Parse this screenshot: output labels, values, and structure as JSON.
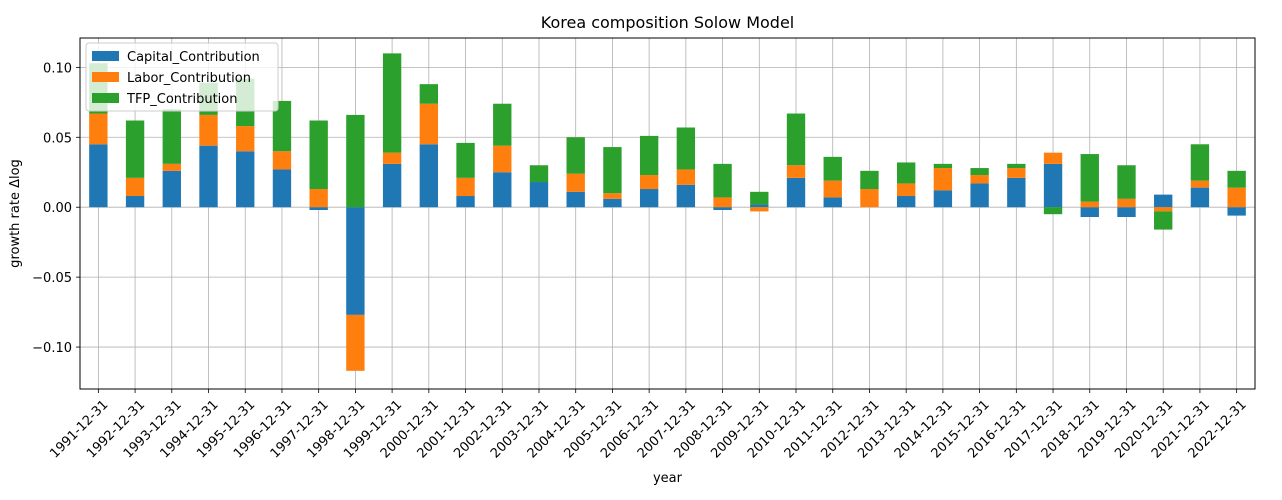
{
  "chart_data": {
    "type": "bar",
    "stacked": true,
    "title": "Korea composition Solow Model",
    "xlabel": "year",
    "ylabel": "growth rate Δlog",
    "ylim": [
      -0.13,
      0.121
    ],
    "yticks": [
      -0.1,
      -0.05,
      0.0,
      0.05,
      0.1
    ],
    "ytick_labels": [
      "−0.10",
      "−0.05",
      "0.00",
      "0.05",
      "0.10"
    ],
    "grid": true,
    "legend_position": "top-left",
    "categories": [
      "1991-12-31",
      "1992-12-31",
      "1993-12-31",
      "1994-12-31",
      "1995-12-31",
      "1996-12-31",
      "1997-12-31",
      "1998-12-31",
      "1999-12-31",
      "2000-12-31",
      "2001-12-31",
      "2002-12-31",
      "2003-12-31",
      "2004-12-31",
      "2005-12-31",
      "2006-12-31",
      "2007-12-31",
      "2008-12-31",
      "2009-12-31",
      "2010-12-31",
      "2011-12-31",
      "2012-12-31",
      "2013-12-31",
      "2014-12-31",
      "2015-12-31",
      "2016-12-31",
      "2017-12-31",
      "2018-12-31",
      "2019-12-31",
      "2020-12-31",
      "2021-12-31",
      "2022-12-31"
    ],
    "series": [
      {
        "name": "Capital_Contribution",
        "color": "#1f77b4",
        "values": [
          0.045,
          0.008,
          0.026,
          0.044,
          0.04,
          0.027,
          -0.002,
          -0.077,
          0.031,
          0.045,
          0.008,
          0.025,
          0.018,
          0.011,
          0.006,
          0.013,
          0.016,
          -0.002,
          0.002,
          0.021,
          0.007,
          0.0,
          0.008,
          0.012,
          0.017,
          0.021,
          0.031,
          -0.007,
          -0.007,
          0.009,
          0.014,
          -0.006
        ]
      },
      {
        "name": "Labor_Contribution",
        "color": "#ff7f0e",
        "values": [
          0.022,
          0.013,
          0.005,
          0.022,
          0.018,
          0.013,
          0.013,
          -0.04,
          0.008,
          0.029,
          0.013,
          0.019,
          0.0,
          0.013,
          0.004,
          0.01,
          0.011,
          0.007,
          -0.003,
          0.009,
          0.012,
          0.013,
          0.009,
          0.016,
          0.006,
          0.007,
          0.008,
          0.004,
          0.006,
          -0.003,
          0.005,
          0.014
        ]
      },
      {
        "name": "TFP_Contribution",
        "color": "#2ca02c",
        "values": [
          0.036,
          0.041,
          0.039,
          0.023,
          0.034,
          0.036,
          0.049,
          0.066,
          0.071,
          0.014,
          0.025,
          0.03,
          0.012,
          0.026,
          0.033,
          0.028,
          0.03,
          0.024,
          0.009,
          0.037,
          0.017,
          0.013,
          0.015,
          0.003,
          0.005,
          0.003,
          -0.005,
          0.034,
          0.024,
          -0.013,
          0.026,
          0.012
        ]
      }
    ]
  }
}
